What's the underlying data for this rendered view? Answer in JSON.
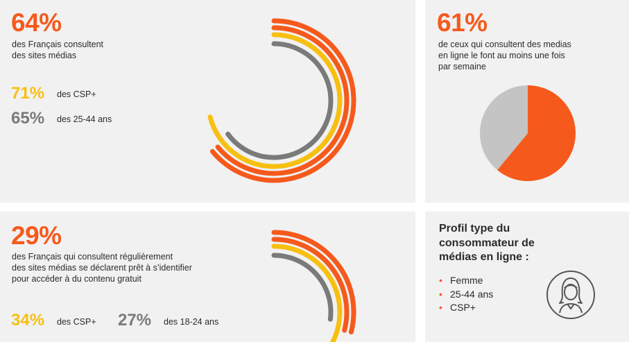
{
  "colors": {
    "orange": "#f55a1c",
    "yellow": "#f7c011",
    "gray": "#7a7a7a",
    "lightgray": "#c4c4c4",
    "panel": "#f1f1f2"
  },
  "block1": {
    "big": "64%",
    "desc": "des Français consultent\ndes sites médias",
    "stats": [
      {
        "value": "71%",
        "label": "des CSP+"
      },
      {
        "value": "65%",
        "label": "des 25-44 ans"
      }
    ]
  },
  "block2": {
    "big": "61%",
    "desc": "de ceux qui consultent des medias\nen ligne le font au moins une fois\npar semaine"
  },
  "block3": {
    "big": "29%",
    "desc": "des Français qui consultent régulièrement\ndes sites médias se déclarent prêt à s’identifier\npour accéder à du contenu gratuit",
    "stats": [
      {
        "value": "34%",
        "label": "des CSP+"
      },
      {
        "value": "27%",
        "label": "des 18-24 ans"
      }
    ]
  },
  "block4": {
    "title": "Profil type du\nconsommateur de\nmédias en ligne :",
    "items": [
      "Femme",
      "25-44 ans",
      "CSP+"
    ],
    "icon": "woman-avatar-icon"
  },
  "chart_data": [
    {
      "type": "radial-bar",
      "series": [
        {
          "name": "",
          "value": 64,
          "color": "#f55a1c"
        },
        {
          "name": "",
          "value": 64,
          "color": "#f55a1c"
        },
        {
          "name": "",
          "value": 71,
          "color": "#f7c011"
        },
        {
          "name": "",
          "value": 65,
          "color": "#7a7a7a"
        }
      ],
      "max": 100
    },
    {
      "type": "pie",
      "slices": [
        {
          "label": "",
          "value": 61,
          "color": "#f55a1c"
        },
        {
          "label": "",
          "value": 39,
          "color": "#c4c4c4"
        }
      ]
    },
    {
      "type": "radial-bar",
      "series": [
        {
          "name": "",
          "value": 29,
          "color": "#f55a1c"
        },
        {
          "name": "",
          "value": 29,
          "color": "#f55a1c"
        },
        {
          "name": "",
          "value": 34,
          "color": "#f7c011"
        },
        {
          "name": "",
          "value": 27,
          "color": "#7a7a7a"
        }
      ],
      "max": 100
    }
  ]
}
